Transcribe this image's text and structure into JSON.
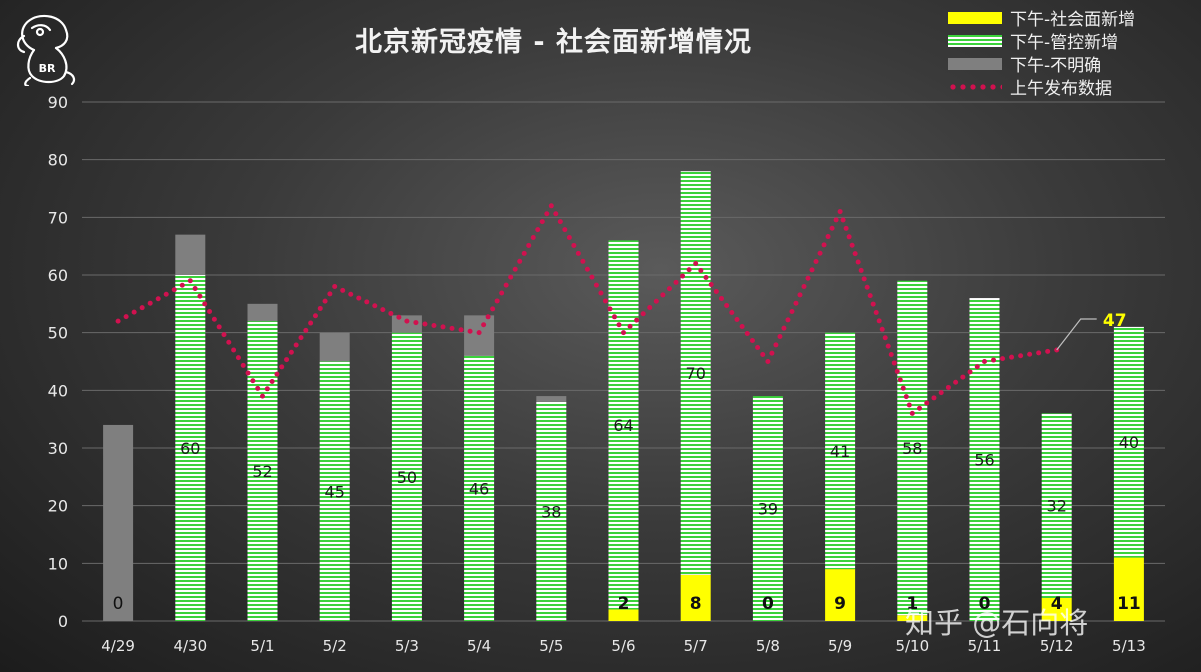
{
  "title": "北京新冠疫情 - 社会面新增情况",
  "logo_text": "BR",
  "watermark": "知乎 @石向将",
  "legend": [
    {
      "label": "下午-社会面新增",
      "kind": "yellow"
    },
    {
      "label": "下午-管控新增",
      "kind": "green"
    },
    {
      "label": "下午-不明确",
      "kind": "gray"
    },
    {
      "label": "上午发布数据",
      "kind": "dots"
    }
  ],
  "chart_data": {
    "type": "bar",
    "stacked": true,
    "title": "北京新冠疫情 - 社会面新增情况",
    "categories": [
      "4/29",
      "4/30",
      "5/1",
      "5/2",
      "5/3",
      "5/4",
      "5/5",
      "5/6",
      "5/7",
      "5/8",
      "5/9",
      "5/10",
      "5/11",
      "5/12",
      "5/13"
    ],
    "ylim": [
      0,
      90
    ],
    "yticks": [
      0,
      10,
      20,
      30,
      40,
      50,
      60,
      70,
      80,
      90
    ],
    "grid": true,
    "legend_position": "top-right",
    "series": [
      {
        "name": "下午-社会面新增",
        "color": "#ffff00",
        "values": [
          0,
          0,
          0,
          0,
          0,
          0,
          0,
          2,
          8,
          0,
          9,
          1,
          0,
          4,
          11
        ],
        "labels": [
          "0",
          "",
          "",
          "",
          "",
          "",
          "",
          "2",
          "8",
          "0",
          "9",
          "1",
          "0",
          "4",
          "11"
        ]
      },
      {
        "name": "下午-管控新增",
        "color": "#3bd23b",
        "values": [
          0,
          60,
          52,
          45,
          50,
          46,
          38,
          64,
          70,
          39,
          41,
          58,
          56,
          32,
          40
        ],
        "labels": [
          "",
          "60",
          "52",
          "45",
          "50",
          "46",
          "38",
          "64",
          "70",
          "39",
          "41",
          "58",
          "56",
          "32",
          "40"
        ]
      },
      {
        "name": "下午-不明确",
        "color": "#7f7f7f",
        "values": [
          34,
          7,
          3,
          5,
          3,
          7,
          1,
          0,
          0,
          0,
          0,
          0,
          0,
          0,
          0
        ]
      }
    ],
    "line": {
      "name": "上午发布数据",
      "color": "#d1114f",
      "values": [
        52,
        59,
        39,
        58,
        52,
        50,
        72,
        50,
        62,
        45,
        71,
        36,
        45,
        47,
        null
      ],
      "callout": {
        "index": 13,
        "text": "47"
      }
    }
  }
}
